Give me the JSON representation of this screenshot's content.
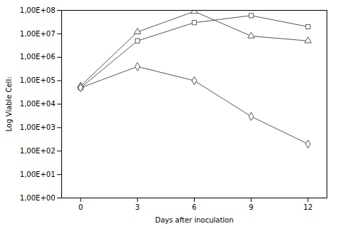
{
  "chart_data": {
    "type": "line",
    "x": [
      0,
      3,
      6,
      9,
      12
    ],
    "series": [
      {
        "color": "#555555",
        "marker": "square",
        "values": [
          50000,
          5000000,
          30000000,
          60000000,
          20000000
        ]
      },
      {
        "color": "#555555",
        "marker": "triangle",
        "values": [
          60000,
          12000000,
          90000000,
          8000000,
          5000000
        ]
      },
      {
        "color": "#555555",
        "marker": "diamond",
        "values": [
          50000,
          400000,
          100000,
          3000,
          200
        ]
      }
    ],
    "xlabel": "Days after inoculation",
    "ylabel": "Log Viable Cell:",
    "xlim": [
      -1,
      13
    ],
    "xticks": [
      0,
      3,
      6,
      9,
      12
    ],
    "log": "y",
    "ylim": [
      1,
      100000000
    ],
    "yticks": [
      {
        "value": 1,
        "label": "1,00E+00"
      },
      {
        "value": 10,
        "label": "1,00E+01"
      },
      {
        "value": 100,
        "label": "1,00E+02"
      },
      {
        "value": 1000,
        "label": "1,00E+03"
      },
      {
        "value": 10000,
        "label": "1,00E+04"
      },
      {
        "value": 100000,
        "label": "1,00E+05"
      },
      {
        "value": 1000000,
        "label": "1,00E+06"
      },
      {
        "value": 10000000,
        "label": "1,00E+07"
      },
      {
        "value": 100000000,
        "label": "1,00E+08"
      }
    ],
    "grid": false
  }
}
